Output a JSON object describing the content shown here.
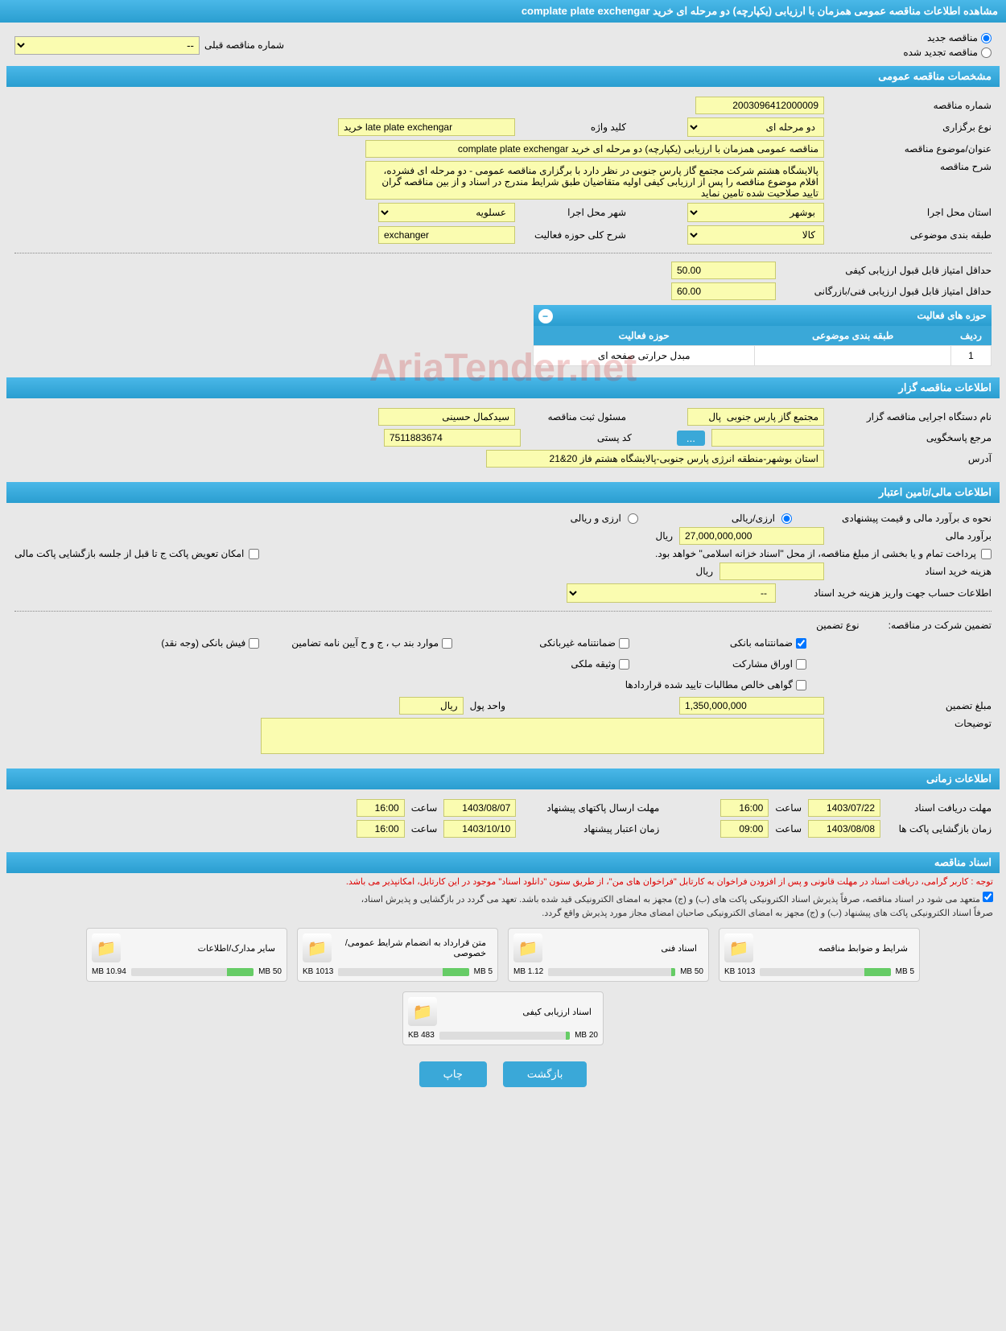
{
  "page_title": "مشاهده اطلاعات مناقصه عمومی همزمان با ارزیابی (یکپارچه) دو مرحله ای خرید complate plate exchengar",
  "top": {
    "radio_new": "مناقصه جدید",
    "radio_renewed": "مناقصه تجدید شده",
    "prev_label": "شماره مناقصه قبلی",
    "prev_value": "--"
  },
  "sec_general": {
    "title": "مشخصات مناقصه عمومی",
    "tender_no_label": "شماره مناقصه",
    "tender_no": "2003096412000009",
    "type_label": "نوع برگزاری",
    "type_value": "دو مرحله ای",
    "keyword_label": "کلید واژه",
    "keyword_value": "خرید late plate exchengar",
    "subject_label": "عنوان/موضوع مناقصه",
    "subject_value": "مناقصه عمومی همزمان با ارزیابی (یکپارچه) دو مرحله ای خرید complate plate exchengar",
    "desc_label": "شرح مناقصه",
    "desc_value": "پالایشگاه هشتم شرکت مجتمع گاز پارس جنوبی در نظر دارد با برگزاری مناقصه عمومی - دو مرحله ای فشرده، اقلام موضوع مناقصه را پس از ارزیابی کیفی اولیه متقاضیان طبق شرایط مندرج در اسناد و از بین مناقصه گران تایید صلاحیت شده تامین نماید",
    "province_label": "استان محل اجرا",
    "province_value": "بوشهر",
    "city_label": "شهر محل اجرا",
    "city_value": "عسلویه",
    "category_label": "طبقه بندی موضوعی",
    "category_value": "کالا",
    "activity_desc_label": "شرح کلی حوزه فعالیت",
    "activity_desc_value": "exchanger",
    "min_qual_label": "حداقل امتیاز قابل قبول ارزیابی کیفی",
    "min_qual_value": "50.00",
    "min_tech_label": "حداقل امتیاز قابل قبول ارزیابی فنی/بازرگانی",
    "min_tech_value": "60.00",
    "activity_table": {
      "header": "حوزه های فعالیت",
      "col_row": "ردیف",
      "col_category": "طبقه بندی موضوعی",
      "col_area": "حوزه فعالیت",
      "row_no": "1",
      "row_category": "",
      "row_area": "مبدل حرارتی صفحه ای"
    }
  },
  "sec_owner": {
    "title": "اطلاعات مناقصه گزار",
    "org_label": "نام دستگاه اجرایی مناقصه گزار",
    "org_value": "مجتمع گاز پارس جنوبی  پال",
    "resp_label": "مسئول ثبت مناقصه",
    "resp_value": "سیدکمال حسینی",
    "ref_label": "مرجع پاسخگویی",
    "ref_value": "",
    "postal_label": "کد پستی",
    "postal_value": "7511883674",
    "address_label": "آدرس",
    "address_value": "استان بوشهر-منطقه انرژی پارس جنوبی-پالایشگاه هشتم فاز 20&21"
  },
  "sec_financial": {
    "title": "اطلاعات مالی/تامین اعتبار",
    "est_label": "نحوه ی برآورد مالی و قیمت پیشنهادی",
    "radio_rial": "ارزی/ریالی",
    "radio_both": "ارزی و ریالی",
    "amount_label": "برآورد مالی",
    "amount_value": "27,000,000,000",
    "currency": "ریال",
    "payment_note": "پرداخت تمام و یا بخشی از مبلغ مناقصه، از محل \"اسناد خزانه اسلامی\" خواهد بود.",
    "swap_note": "امکان تعویض پاکت ج تا قبل از جلسه بازگشایی پاکت مالی",
    "purchase_cost_label": "هزینه خرید اسناد",
    "account_label": "اطلاعات حساب جهت واریز هزینه خرید اسناد",
    "account_value": "--",
    "guarantee_label": "تضمین شرکت در مناقصه:",
    "guarantee_type_label": "نوع تضمین",
    "g_bank": "ضمانتنامه بانکی",
    "g_nonbank": "ضمانتنامه غیربانکی",
    "g_bond": "موارد بند ب ، ج و ح آیین نامه تضامین",
    "g_cash": "فیش بانکی (وجه نقد)",
    "g_securities": "اوراق مشارکت",
    "g_property": "وثیقه ملکی",
    "g_receivables": "گواهی خالص مطالبات تایید شده قراردادها",
    "guarantee_amount_label": "مبلغ تضمین",
    "guarantee_amount_value": "1,350,000,000",
    "unit_label": "واحد پول",
    "unit_value": "ریال",
    "remarks_label": "توضیحات",
    "remarks_value": ""
  },
  "sec_time": {
    "title": "اطلاعات زمانی",
    "receive_label": "مهلت دریافت اسناد",
    "receive_date": "1403/07/22",
    "receive_time_label": "ساعت",
    "receive_time": "16:00",
    "send_label": "مهلت ارسال پاکتهای پیشنهاد",
    "send_date": "1403/08/07",
    "send_time": "16:00",
    "open_label": "زمان بازگشایی پاکت ها",
    "open_date": "1403/08/08",
    "open_time": "09:00",
    "validity_label": "زمان اعتبار پیشنهاد",
    "validity_date": "1403/10/10",
    "validity_time": "16:00"
  },
  "sec_docs": {
    "title": "اسناد مناقصه",
    "red_note": "توجه : کاربر گرامی، دریافت اسناد در مهلت قانونی و پس از افزودن فراخوان به کارتابل \"فراخوان های من\"، از طریق ستون \"دانلود اسناد\" موجود در این کارتابل، امکانپذیر می باشد.",
    "note1": "متعهد می شود در اسناد مناقصه، صرفاً پذیرش اسناد الکترونیکی پاکت های (ب) و (ج) مجهز به امضای الکترونیکی قید شده باشد. تعهد می گردد در بازگشایی و پذیرش اسناد،",
    "note2": "صرفاً اسناد الکترونیکی پاکت های پیشنهاد (ب) و (ج) مجهز به امضای الکترونیکی صاحبان امضای مجاز مورد پذیرش واقع گردد.",
    "files": [
      {
        "title": "شرایط و ضوابط مناقصه",
        "used": "1013 KB",
        "total": "5 MB",
        "pct": 20
      },
      {
        "title": "اسناد فنی",
        "used": "1.12 MB",
        "total": "50 MB",
        "pct": 3
      },
      {
        "title": "متن قرارداد به انضمام شرایط عمومی/خصوصی",
        "used": "1013 KB",
        "total": "5 MB",
        "pct": 20
      },
      {
        "title": "سایر مدارک/اطلاعات",
        "used": "10.94 MB",
        "total": "50 MB",
        "pct": 22
      },
      {
        "title": "اسناد ارزیابی کیفی",
        "used": "483 KB",
        "total": "20 MB",
        "pct": 3
      }
    ]
  },
  "buttons": {
    "back": "بازگشت",
    "print": "چاپ"
  },
  "watermark": "AriaTender.net"
}
